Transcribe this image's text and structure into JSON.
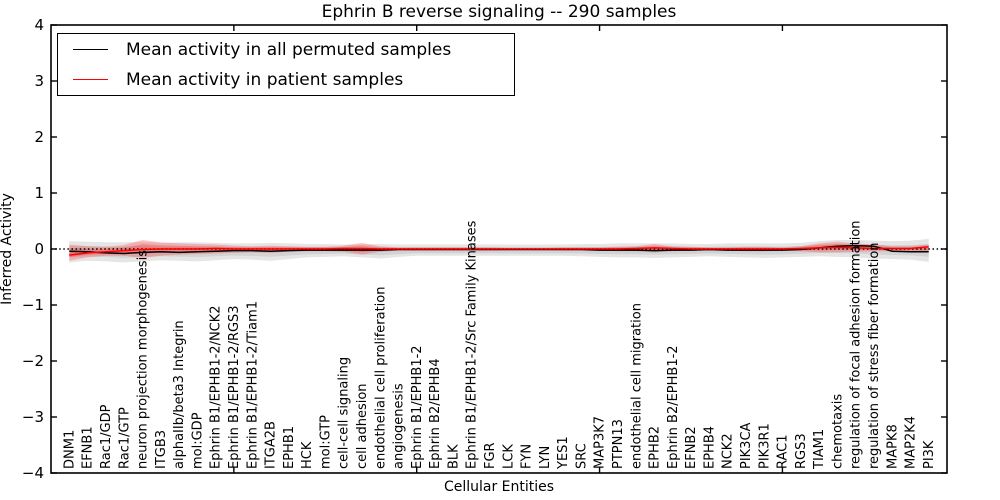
{
  "chart": {
    "title": "Ephrin B reverse signaling -- 290 samples",
    "xlabel": "Cellular Entities",
    "ylabel": "Inferred Activity"
  },
  "chart_data": {
    "type": "line",
    "title": "Ephrin B reverse signaling -- 290 samples",
    "xlabel": "Cellular Entities",
    "ylabel": "Inferred Activity",
    "ylim": [
      -4,
      4
    ],
    "xlim": [
      0,
      49
    ],
    "yticks": [
      4,
      3,
      2,
      1,
      0,
      -1,
      -2,
      -3,
      -4
    ],
    "ytick_labels": [
      "4",
      "3",
      "2",
      "1",
      "0",
      "−1",
      "−2",
      "−3",
      "−4"
    ],
    "xticks": [
      10,
      20,
      30,
      40
    ],
    "grid": false,
    "legend_position": "upper left",
    "legend": [
      "Mean activity in all permuted samples",
      "Mean activity in patient samples"
    ],
    "zero_line": {
      "value": 0,
      "style": "dotted",
      "color": "#000000"
    },
    "categories": [
      "DNM1",
      "EFNB1",
      "Rac1/GDP",
      "Rac1/GTP",
      "neuron projection morphogenesis",
      "ITGB3",
      "alphaIIb/beta3 Integrin",
      "mol:GDP",
      "Ephrin B1/EPHB1-2/NCK2",
      "Ephrin B1/EPHB1-2/RGS3",
      "Ephrin B1/EPHB1-2/Tiam1",
      "ITGA2B",
      "EPHB1",
      "HCK",
      "mol:GTP",
      "cell-cell signaling",
      "cell adhesion",
      "endothelial cell proliferation",
      "angiogenesis",
      "Ephrin B1/EPHB1-2",
      "Ephrin B2/EPHB4",
      "BLK",
      "Ephrin B1/EPHB1-2/Src Family Kinases",
      "FGR",
      "LCK",
      "FYN",
      "LYN",
      "YES1",
      "SRC",
      "MAP3K7",
      "PTPN13",
      "endothelial cell migration",
      "EPHB2",
      "Ephrin B2/EPHB1-2",
      "EFNB2",
      "EPHB4",
      "NCK2",
      "PIK3CA",
      "PIK3R1",
      "RAC1",
      "RGS3",
      "TIAM1",
      "chemotaxis",
      "regulation of focal adhesion formation",
      "regulation of stress fiber formation",
      "MAPK8",
      "MAP2K4",
      "PI3K"
    ],
    "series": [
      {
        "name": "Mean activity in all permuted samples",
        "color": "#000000",
        "style": "solid",
        "values": [
          -0.04,
          -0.05,
          -0.07,
          -0.08,
          -0.06,
          -0.05,
          -0.06,
          -0.05,
          -0.04,
          -0.03,
          -0.03,
          -0.04,
          -0.03,
          -0.02,
          -0.02,
          -0.02,
          -0.02,
          -0.02,
          -0.01,
          -0.01,
          -0.01,
          -0.01,
          -0.01,
          -0.01,
          -0.01,
          -0.01,
          -0.01,
          -0.01,
          -0.01,
          -0.02,
          -0.02,
          -0.02,
          -0.03,
          -0.02,
          -0.02,
          -0.01,
          -0.02,
          -0.02,
          -0.02,
          -0.02,
          -0.01,
          0.02,
          0.05,
          0.06,
          0.05,
          -0.04,
          -0.05,
          -0.05
        ]
      },
      {
        "name": "Mean activity in patient samples",
        "color": "#ff0000",
        "style": "solid",
        "values": [
          -0.11,
          -0.07,
          -0.05,
          -0.03,
          -0.01,
          0.0,
          0.0,
          0.0,
          0.01,
          0.0,
          0.0,
          0.0,
          0.0,
          0.0,
          0.0,
          0.01,
          0.01,
          0.0,
          0.0,
          0.0,
          0.0,
          0.0,
          0.0,
          0.0,
          0.0,
          0.0,
          0.0,
          0.0,
          0.0,
          0.0,
          0.0,
          0.01,
          0.02,
          0.01,
          0.0,
          0.0,
          0.0,
          0.0,
          0.0,
          0.0,
          0.01,
          0.02,
          0.03,
          0.02,
          0.01,
          0.01,
          0.01,
          0.04
        ]
      }
    ],
    "bands": [
      {
        "name": "permuted-samples-band",
        "color": "#aaaaaa",
        "opacity": 0.3,
        "upper": [
          0.14,
          0.13,
          0.12,
          0.12,
          0.13,
          0.11,
          0.12,
          0.12,
          0.11,
          0.1,
          0.1,
          0.11,
          0.1,
          0.09,
          0.09,
          0.08,
          0.08,
          0.09,
          0.08,
          0.08,
          0.08,
          0.08,
          0.08,
          0.08,
          0.08,
          0.08,
          0.08,
          0.08,
          0.09,
          0.09,
          0.1,
          0.1,
          0.1,
          0.1,
          0.09,
          0.09,
          0.1,
          0.1,
          0.1,
          0.1,
          0.11,
          0.14,
          0.16,
          0.16,
          0.15,
          0.14,
          0.15,
          0.18
        ],
        "lower": [
          -0.24,
          -0.21,
          -0.22,
          -0.24,
          -0.22,
          -0.2,
          -0.21,
          -0.22,
          -0.2,
          -0.18,
          -0.19,
          -0.21,
          -0.18,
          -0.15,
          -0.14,
          -0.13,
          -0.15,
          -0.17,
          -0.14,
          -0.12,
          -0.12,
          -0.12,
          -0.12,
          -0.12,
          -0.12,
          -0.12,
          -0.12,
          -0.12,
          -0.13,
          -0.14,
          -0.15,
          -0.15,
          -0.16,
          -0.15,
          -0.14,
          -0.13,
          -0.14,
          -0.15,
          -0.16,
          -0.15,
          -0.14,
          -0.13,
          -0.14,
          -0.15,
          -0.17,
          -0.18,
          -0.19,
          -0.23
        ]
      },
      {
        "name": "patient-samples-band",
        "color": "#ff0000",
        "opacity": 0.22,
        "upper": [
          0.08,
          0.05,
          0.04,
          0.07,
          0.16,
          0.12,
          0.1,
          0.09,
          0.08,
          0.06,
          0.05,
          0.06,
          0.05,
          0.04,
          0.04,
          0.06,
          0.11,
          0.05,
          0.03,
          0.03,
          0.03,
          0.03,
          0.03,
          0.03,
          0.02,
          0.02,
          0.02,
          0.03,
          0.03,
          0.03,
          0.04,
          0.05,
          0.09,
          0.05,
          0.04,
          0.03,
          0.03,
          0.04,
          0.04,
          0.03,
          0.05,
          0.1,
          0.13,
          0.1,
          0.08,
          0.05,
          0.05,
          0.08
        ],
        "lower": [
          -0.21,
          -0.15,
          -0.12,
          -0.12,
          -0.16,
          -0.12,
          -0.1,
          -0.09,
          -0.08,
          -0.07,
          -0.06,
          -0.07,
          -0.05,
          -0.04,
          -0.04,
          -0.05,
          -0.1,
          -0.05,
          -0.03,
          -0.03,
          -0.03,
          -0.03,
          -0.03,
          -0.03,
          -0.02,
          -0.02,
          -0.02,
          -0.03,
          -0.03,
          -0.03,
          -0.04,
          -0.04,
          -0.06,
          -0.04,
          -0.03,
          -0.03,
          -0.03,
          -0.04,
          -0.04,
          -0.03,
          -0.04,
          -0.06,
          -0.06,
          -0.05,
          -0.04,
          -0.04,
          -0.04,
          -0.06
        ]
      }
    ]
  }
}
